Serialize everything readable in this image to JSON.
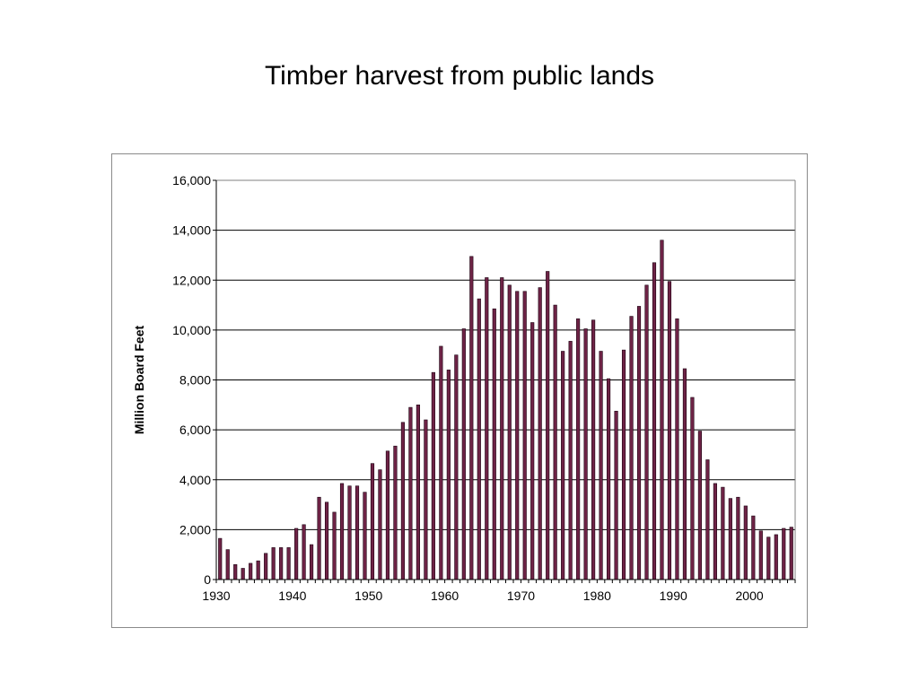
{
  "slide": {
    "title": "Timber harvest from public lands"
  },
  "colors": {
    "bar_fill": "#6e2346",
    "bar_stroke": "#1a0010",
    "gridline": "#000000",
    "plot_border": "#808080",
    "text": "#000000"
  },
  "chart_data": {
    "type": "bar",
    "title": "",
    "xlabel": "",
    "ylabel": "Million Board Feet",
    "xlim": [
      1930,
      2006
    ],
    "ylim": [
      0,
      16000
    ],
    "y_ticks": [
      0,
      2000,
      4000,
      6000,
      8000,
      10000,
      12000,
      14000,
      16000
    ],
    "y_tick_labels": [
      "0",
      "2,000",
      "4,000",
      "6,000",
      "8,000",
      "10,000",
      "12,000",
      "14,000",
      "16,000"
    ],
    "x_ticks": [
      1930,
      1940,
      1950,
      1960,
      1970,
      1980,
      1990,
      2000
    ],
    "x_tick_labels": [
      "1930",
      "1940",
      "1950",
      "1960",
      "1970",
      "1980",
      "1990",
      "2000"
    ],
    "grid": true,
    "legend": "none",
    "categories": [
      1930,
      1931,
      1932,
      1933,
      1934,
      1935,
      1936,
      1937,
      1938,
      1939,
      1940,
      1941,
      1942,
      1943,
      1944,
      1945,
      1946,
      1947,
      1948,
      1949,
      1950,
      1951,
      1952,
      1953,
      1954,
      1955,
      1956,
      1957,
      1958,
      1959,
      1960,
      1961,
      1962,
      1963,
      1964,
      1965,
      1966,
      1967,
      1968,
      1969,
      1970,
      1971,
      1972,
      1973,
      1974,
      1975,
      1976,
      1977,
      1978,
      1979,
      1980,
      1981,
      1982,
      1983,
      1984,
      1985,
      1986,
      1987,
      1988,
      1989,
      1990,
      1991,
      1992,
      1993,
      1994,
      1995,
      1996,
      1997,
      1998,
      1999,
      2000,
      2001,
      2002,
      2003,
      2004,
      2005
    ],
    "values": [
      1650,
      1200,
      600,
      450,
      650,
      750,
      1050,
      1280,
      1280,
      1280,
      2050,
      2200,
      1400,
      3300,
      3100,
      2700,
      3850,
      3750,
      3750,
      3500,
      4650,
      4400,
      5150,
      5350,
      6300,
      6900,
      7000,
      6400,
      8300,
      9350,
      8400,
      9000,
      10050,
      12950,
      11250,
      12100,
      10850,
      12100,
      11800,
      11550,
      11550,
      10300,
      11700,
      12350,
      11000,
      9150,
      9550,
      10450,
      10050,
      10400,
      9150,
      8050,
      6750,
      9200,
      10550,
      10950,
      11800,
      12700,
      13600,
      11950,
      10450,
      8450,
      7300,
      5950,
      4800,
      3850,
      3700,
      3250,
      3300,
      2950,
      2550,
      1950,
      1700,
      1800,
      2050,
      2100
    ]
  }
}
